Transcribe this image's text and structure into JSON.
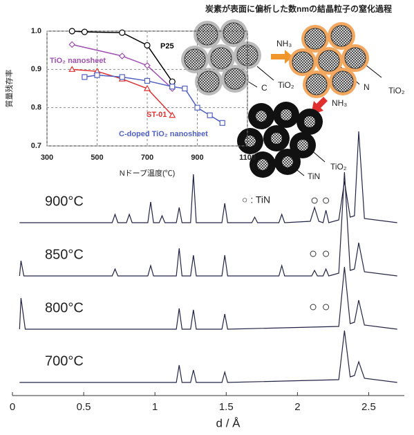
{
  "chart_data": [
    {
      "type": "line",
      "ylabel": "質量残存率",
      "xlabel": "Nドープ温度(℃)",
      "xlim": [
        300,
        1100
      ],
      "xticks": [
        300,
        500,
        700,
        900,
        1100
      ],
      "ylim": [
        0.7,
        1.0
      ],
      "yticks": [
        0.7,
        0.8,
        0.9,
        {
          "value": 1,
          "label": "1.0"
        }
      ],
      "grid": true,
      "series": [
        {
          "name": "P25",
          "color": "#000000",
          "marker": "circle",
          "x": [
            400,
            450,
            600,
            700,
            800
          ],
          "values": [
            1.0,
            0.998,
            0.996,
            0.963,
            0.868
          ]
        },
        {
          "name": "TiO₂ nanosheet",
          "color": "#a050b0",
          "marker": "diamond",
          "x": [
            400,
            600,
            700,
            800
          ],
          "values": [
            0.965,
            0.935,
            0.91,
            0.85
          ]
        },
        {
          "name": "ST-01",
          "color": "#e03030",
          "marker": "triangle",
          "x": [
            400,
            500,
            600,
            700,
            800
          ],
          "values": [
            0.9,
            0.895,
            0.875,
            0.85,
            0.78
          ]
        },
        {
          "name": "C-doped TiO₂ nanosheet",
          "color": "#5060c0",
          "marker": "square",
          "x": [
            450,
            500,
            600,
            700,
            800,
            850,
            900,
            950,
            1000
          ],
          "values": [
            0.88,
            0.885,
            0.88,
            0.87,
            0.855,
            0.85,
            0.8,
            0.78,
            0.76
          ]
        }
      ]
    },
    {
      "type": "spectra",
      "xlabel": "d / Å",
      "legend_note": "○ : TiN",
      "xlim": [
        0,
        2.75
      ],
      "xticks": [
        0,
        0.5,
        1,
        1.5,
        2,
        2.5
      ],
      "series": [
        {
          "name": "900°C",
          "color": "#222244",
          "tin_x": [
            2.12,
            2.2
          ],
          "x": [
            0.05,
            0.7,
            0.72,
            0.74,
            0.8,
            0.82,
            0.84,
            0.95,
            0.97,
            0.99,
            1.03,
            1.05,
            1.07,
            1.15,
            1.17,
            1.19,
            1.25,
            1.27,
            1.29,
            1.47,
            1.49,
            1.51,
            1.68,
            1.7,
            1.72,
            1.87,
            1.89,
            1.91,
            2.09,
            2.12,
            2.15,
            2.18,
            2.2,
            2.22,
            2.29,
            2.33,
            2.37,
            2.4,
            2.43,
            2.47,
            2.7
          ],
          "values": [
            0,
            0,
            12,
            0,
            0,
            12,
            0,
            0,
            30,
            0,
            0,
            10,
            0,
            0,
            22,
            0,
            0,
            70,
            0,
            0,
            28,
            0,
            0,
            8,
            0,
            0,
            12,
            0,
            2,
            22,
            2,
            0,
            18,
            0,
            4,
            60,
            8,
            10,
            132,
            6,
            0
          ]
        },
        {
          "name": "850°C",
          "color": "#222244",
          "tin_x": [
            2.11,
            2.2
          ],
          "x": [
            0.05,
            0.06,
            0.08,
            0.7,
            0.72,
            0.74,
            0.95,
            0.97,
            0.99,
            1.15,
            1.17,
            1.19,
            1.25,
            1.27,
            1.29,
            1.47,
            1.49,
            1.51,
            1.87,
            1.89,
            1.91,
            2.1,
            2.12,
            2.14,
            2.18,
            2.2,
            2.22,
            2.29,
            2.33,
            2.37,
            2.4,
            2.43,
            2.47,
            2.7
          ],
          "values": [
            0,
            22,
            0,
            0,
            10,
            0,
            0,
            15,
            0,
            0,
            40,
            0,
            0,
            30,
            0,
            0,
            30,
            0,
            0,
            15,
            0,
            0,
            8,
            0,
            0,
            10,
            0,
            4,
            150,
            8,
            10,
            48,
            6,
            0
          ]
        },
        {
          "name": "800°C",
          "color": "#222244",
          "tin_x": [
            2.11,
            2.2
          ],
          "x": [
            0.05,
            0.06,
            0.09,
            1.15,
            1.17,
            1.19,
            1.25,
            1.27,
            1.29,
            1.47,
            1.49,
            1.51,
            2.29,
            2.33,
            2.37,
            2.4,
            2.43,
            2.47,
            2.7
          ],
          "values": [
            0,
            45,
            0,
            0,
            30,
            0,
            0,
            28,
            0,
            0,
            22,
            0,
            4,
            90,
            8,
            10,
            42,
            6,
            0
          ]
        },
        {
          "name": "700°C",
          "color": "#222244",
          "tin_x": [],
          "x": [
            0.05,
            1.15,
            1.17,
            1.19,
            1.25,
            1.27,
            1.29,
            1.47,
            1.49,
            1.51,
            2.29,
            2.33,
            2.37,
            2.4,
            2.43,
            2.47,
            2.7
          ],
          "values": [
            0,
            0,
            25,
            0,
            0,
            18,
            0,
            0,
            15,
            0,
            4,
            75,
            8,
            10,
            30,
            6,
            0
          ]
        }
      ]
    }
  ],
  "diagram": {
    "title": "炭素が表面に偏析した数nmの結晶粒子の窒化過程",
    "labels": [
      "NH₃",
      "C",
      "TiO₂",
      "N",
      "TiO₂",
      "NH₃",
      "TiN",
      "TiO₂"
    ]
  }
}
